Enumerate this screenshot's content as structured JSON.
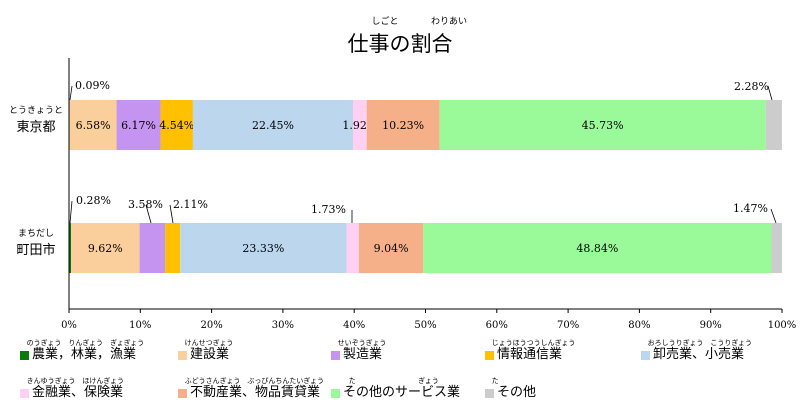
{
  "chart_data": {
    "type": "bar",
    "orientation": "horizontal",
    "stacked": true,
    "title": "仕事の割合",
    "title_ruby": [
      {
        "text": "しごと"
      },
      {
        "text": "わりあい"
      }
    ],
    "categories": [
      {
        "label": "東京都",
        "ruby": "とうきょうと"
      },
      {
        "label": "町田市",
        "ruby": "まちだし"
      }
    ],
    "series": [
      {
        "name": "農業，林業，漁業",
        "ruby": "のうぎょう　りんぎょう　ぎょぎょう",
        "color": "#0a7a0a",
        "values": [
          0.09,
          0.28
        ],
        "labels": [
          "0.09%",
          "0.28%"
        ]
      },
      {
        "name": "建設業",
        "ruby": "けんせつぎょう",
        "color": "#fbcf9b",
        "values": [
          6.58,
          9.62
        ],
        "labels": [
          "6.58%",
          "9.62%"
        ]
      },
      {
        "name": "製造業",
        "ruby": "せいぞうぎょう",
        "color": "#c494f0",
        "values": [
          6.17,
          3.58
        ],
        "labels": [
          "6.17%",
          "3.58%"
        ]
      },
      {
        "name": "情報通信業",
        "ruby": "じょうほうつうしんぎょう",
        "color": "#ffc000",
        "values": [
          4.54,
          2.11
        ],
        "labels": [
          "4.54%",
          "2.11%"
        ]
      },
      {
        "name": "卸売業、小売業",
        "ruby": "おろしうりぎょう　こうりぎょう",
        "color": "#bcd6ee",
        "values": [
          22.45,
          23.33
        ],
        "labels": [
          "22.45%",
          "23.33%"
        ]
      },
      {
        "name": "金融業、保険業",
        "ruby": "きんゆうぎょう　ほけんぎょう",
        "color": "#ffd0f2",
        "values": [
          1.92,
          1.73
        ],
        "labels": [
          "1.92%",
          "1.73%"
        ]
      },
      {
        "name": "不動産業、物品賃貸業",
        "ruby": "ふどうさんぎょう　ぶっぴんちんたいぎょう",
        "color": "#f5b08a",
        "values": [
          10.23,
          9.04
        ],
        "labels": [
          "10.23%",
          "9.04%"
        ]
      },
      {
        "name": "その他のサービス業",
        "ruby_parts": [
          "た",
          "ぎょう"
        ],
        "color": "#9afa9a",
        "values": [
          45.73,
          48.84
        ],
        "labels": [
          "45.73%",
          "48.84%"
        ]
      },
      {
        "name": "その他",
        "ruby": "た",
        "color": "#cccccc",
        "values": [
          2.28,
          1.47
        ],
        "labels": [
          "2.28%",
          "1.47%"
        ]
      }
    ],
    "xlim": [
      0,
      100
    ],
    "x_ticks": [
      "0%",
      "10%",
      "20%",
      "30%",
      "40%",
      "50%",
      "60%",
      "70%",
      "80%",
      "90%",
      "100%"
    ],
    "grid": false,
    "legend_position": "bottom"
  }
}
